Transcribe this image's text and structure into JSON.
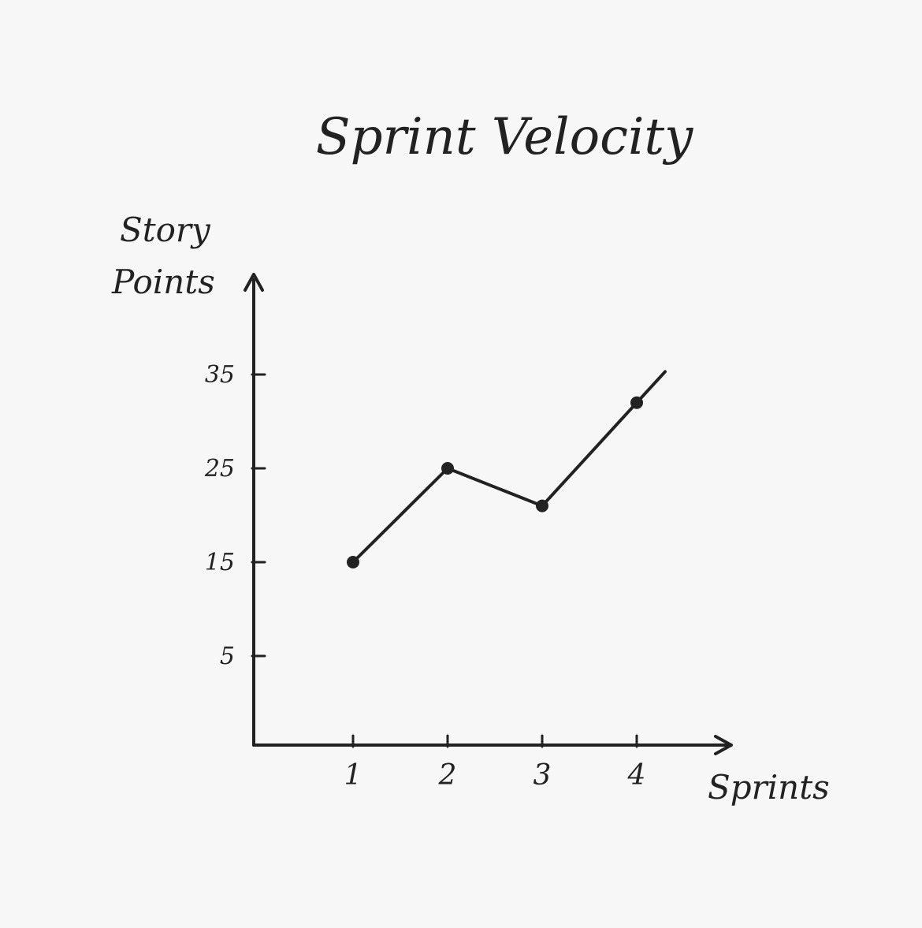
{
  "chart_data": {
    "type": "line",
    "title": "Sprint Velocity",
    "xlabel": "Sprints",
    "ylabel_line1": "Story",
    "ylabel_line2": "Points",
    "x": [
      1,
      2,
      3,
      4
    ],
    "x_tick_labels": [
      "1",
      "2",
      "3",
      "4"
    ],
    "y_ticks": [
      5,
      15,
      25,
      35
    ],
    "y_tick_labels": [
      "5",
      "15",
      "25",
      "35"
    ],
    "ylim": [
      0,
      44
    ],
    "series": [
      {
        "values": [
          15,
          25,
          21,
          32
        ]
      }
    ],
    "grid": false,
    "line_color": "#222222"
  }
}
